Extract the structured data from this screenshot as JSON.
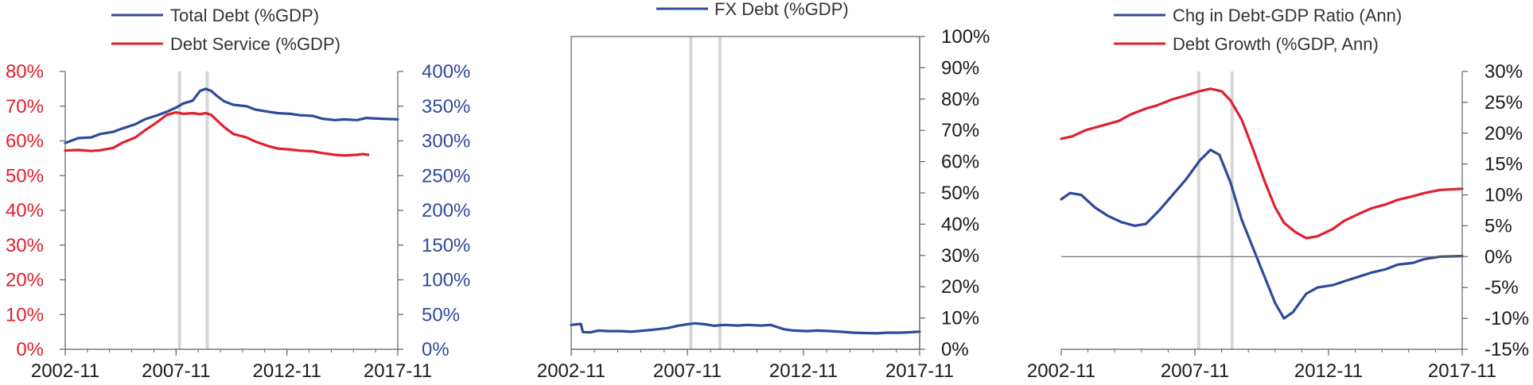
{
  "colors": {
    "blue": "#2E4A9A",
    "red": "#E0202E",
    "axis": "#606060",
    "recession_band": "#D6D6D6"
  },
  "recession_bands": [
    [
      "2007-12",
      "2008-01"
    ],
    [
      "2009-03",
      "2009-04"
    ]
  ],
  "chart_data": [
    {
      "type": "line",
      "legend": [
        "Total Debt (%GDP)",
        "Debt Service (%GDP)"
      ],
      "legend_placement": "top",
      "x_ticks": [
        "2002-11",
        "2007-11",
        "2012-11",
        "2017-11"
      ],
      "xlim": [
        "2002-11",
        "2017-11"
      ],
      "left_axis": {
        "ticks": [
          "0%",
          "10%",
          "20%",
          "30%",
          "40%",
          "50%",
          "60%",
          "70%",
          "80%"
        ],
        "ylim": [
          0,
          80
        ],
        "color": "#E0202E"
      },
      "right_axis": {
        "ticks": [
          "0%",
          "50%",
          "100%",
          "150%",
          "200%",
          "250%",
          "300%",
          "350%",
          "400%"
        ],
        "ylim": [
          0,
          400
        ],
        "color": "#2E4A9A"
      },
      "grid": false,
      "series": [
        {
          "name": "Total Debt (%GDP)",
          "axis": "right",
          "color": "#2E4A9A",
          "points": [
            [
              "2002-11",
              297
            ],
            [
              "2003-06",
              304
            ],
            [
              "2004-01",
              305
            ],
            [
              "2004-06",
              310
            ],
            [
              "2005-01",
              313
            ],
            [
              "2005-06",
              318
            ],
            [
              "2006-01",
              324
            ],
            [
              "2006-06",
              331
            ],
            [
              "2007-01",
              337
            ],
            [
              "2007-06",
              342
            ],
            [
              "2007-11",
              348
            ],
            [
              "2008-03",
              354
            ],
            [
              "2008-08",
              358
            ],
            [
              "2008-12",
              372
            ],
            [
              "2009-03",
              375
            ],
            [
              "2009-06",
              372
            ],
            [
              "2009-09",
              365
            ],
            [
              "2010-01",
              357
            ],
            [
              "2010-06",
              352
            ],
            [
              "2011-01",
              350
            ],
            [
              "2011-06",
              345
            ],
            [
              "2012-01",
              342
            ],
            [
              "2012-06",
              340
            ],
            [
              "2013-01",
              339
            ],
            [
              "2013-06",
              337
            ],
            [
              "2014-01",
              336
            ],
            [
              "2014-06",
              332
            ],
            [
              "2015-01",
              330
            ],
            [
              "2015-06",
              331
            ],
            [
              "2016-01",
              330
            ],
            [
              "2016-06",
              333
            ],
            [
              "2017-01",
              332
            ],
            [
              "2017-11",
              331
            ]
          ]
        },
        {
          "name": "Debt Service (%GDP)",
          "axis": "left",
          "color": "#E0202E",
          "points": [
            [
              "2002-11",
              57.2
            ],
            [
              "2003-06",
              57.4
            ],
            [
              "2004-01",
              57.1
            ],
            [
              "2004-06",
              57.3
            ],
            [
              "2005-01",
              58
            ],
            [
              "2005-06",
              59.5
            ],
            [
              "2006-01",
              61
            ],
            [
              "2006-06",
              63
            ],
            [
              "2007-01",
              65.5
            ],
            [
              "2007-06",
              67.5
            ],
            [
              "2007-11",
              68.2
            ],
            [
              "2008-03",
              67.8
            ],
            [
              "2008-08",
              68
            ],
            [
              "2008-12",
              67.7
            ],
            [
              "2009-03",
              68
            ],
            [
              "2009-06",
              67.5
            ],
            [
              "2009-09",
              66
            ],
            [
              "2010-01",
              64
            ],
            [
              "2010-06",
              62
            ],
            [
              "2011-01",
              61
            ],
            [
              "2011-06",
              59.8
            ],
            [
              "2012-01",
              58.5
            ],
            [
              "2012-06",
              57.8
            ],
            [
              "2013-01",
              57.5
            ],
            [
              "2013-06",
              57.2
            ],
            [
              "2014-01",
              57
            ],
            [
              "2014-06",
              56.5
            ],
            [
              "2015-01",
              56
            ],
            [
              "2015-06",
              55.8
            ],
            [
              "2016-01",
              56
            ],
            [
              "2016-04",
              56.2
            ],
            [
              "2016-07",
              56
            ]
          ]
        }
      ]
    },
    {
      "type": "line",
      "legend": [
        "FX Debt (%GDP)"
      ],
      "legend_placement": "top",
      "x_ticks": [
        "2002-11",
        "2007-11",
        "2012-11",
        "2017-11"
      ],
      "xlim": [
        "2002-11",
        "2017-11"
      ],
      "right_axis": {
        "ticks": [
          "0%",
          "10%",
          "20%",
          "30%",
          "40%",
          "50%",
          "60%",
          "70%",
          "80%",
          "90%",
          "100%"
        ],
        "ylim": [
          0,
          100
        ]
      },
      "grid": false,
      "series": [
        {
          "name": "FX Debt (%GDP)",
          "axis": "right",
          "color": "#2E4A9A",
          "points": [
            [
              "2002-11",
              7.8
            ],
            [
              "2003-02",
              8
            ],
            [
              "2003-04",
              8.1
            ],
            [
              "2003-05",
              5.5
            ],
            [
              "2003-09",
              5.4
            ],
            [
              "2004-01",
              6
            ],
            [
              "2004-06",
              5.8
            ],
            [
              "2005-01",
              5.8
            ],
            [
              "2005-06",
              5.6
            ],
            [
              "2006-01",
              6
            ],
            [
              "2006-06",
              6.3
            ],
            [
              "2007-01",
              6.8
            ],
            [
              "2007-06",
              7.5
            ],
            [
              "2007-11",
              8
            ],
            [
              "2008-03",
              8.3
            ],
            [
              "2008-08",
              8
            ],
            [
              "2009-01",
              7.5
            ],
            [
              "2009-06",
              7.8
            ],
            [
              "2010-01",
              7.6
            ],
            [
              "2010-06",
              7.8
            ],
            [
              "2011-01",
              7.6
            ],
            [
              "2011-06",
              7.8
            ],
            [
              "2011-09",
              7.2
            ],
            [
              "2012-01",
              6.4
            ],
            [
              "2012-06",
              6
            ],
            [
              "2013-01",
              5.8
            ],
            [
              "2013-06",
              6
            ],
            [
              "2014-01",
              5.8
            ],
            [
              "2014-06",
              5.6
            ],
            [
              "2015-01",
              5.3
            ],
            [
              "2015-06",
              5.2
            ],
            [
              "2016-01",
              5.1
            ],
            [
              "2016-06",
              5.3
            ],
            [
              "2017-01",
              5.3
            ],
            [
              "2017-11",
              5.6
            ]
          ]
        }
      ]
    },
    {
      "type": "line",
      "legend": [
        "Chg in Debt-GDP Ratio (Ann)",
        "Debt Growth (%GDP, Ann)"
      ],
      "legend_placement": "top",
      "x_ticks": [
        "2002-11",
        "2007-11",
        "2012-11",
        "2017-11"
      ],
      "xlim": [
        "2002-11",
        "2017-11"
      ],
      "right_axis": {
        "ticks": [
          "-15%",
          "-10%",
          "-5%",
          "0%",
          "5%",
          "10%",
          "15%",
          "20%",
          "25%",
          "30%"
        ],
        "ylim": [
          -15,
          30
        ]
      },
      "zero_line": true,
      "grid": false,
      "series": [
        {
          "name": "Chg in Debt-GDP Ratio (Ann)",
          "axis": "right",
          "color": "#2E4A9A",
          "points": [
            [
              "2002-11",
              9.3
            ],
            [
              "2003-03",
              10.3
            ],
            [
              "2003-08",
              10
            ],
            [
              "2004-02",
              8
            ],
            [
              "2004-08",
              6.6
            ],
            [
              "2005-02",
              5.6
            ],
            [
              "2005-08",
              5
            ],
            [
              "2006-01",
              5.3
            ],
            [
              "2006-07",
              7.5
            ],
            [
              "2007-01",
              10
            ],
            [
              "2007-07",
              12.5
            ],
            [
              "2008-01",
              15.5
            ],
            [
              "2008-06",
              17.3
            ],
            [
              "2008-10",
              16.5
            ],
            [
              "2009-03",
              12
            ],
            [
              "2009-08",
              6
            ],
            [
              "2010-01",
              1.5
            ],
            [
              "2010-06",
              -3
            ],
            [
              "2010-11",
              -7.5
            ],
            [
              "2011-03",
              -10
            ],
            [
              "2011-07",
              -9
            ],
            [
              "2012-01",
              -6
            ],
            [
              "2012-06",
              -5
            ],
            [
              "2013-01",
              -4.6
            ],
            [
              "2013-06",
              -4
            ],
            [
              "2014-01",
              -3.2
            ],
            [
              "2014-06",
              -2.6
            ],
            [
              "2015-01",
              -2
            ],
            [
              "2015-06",
              -1.3
            ],
            [
              "2016-01",
              -1
            ],
            [
              "2016-06",
              -0.4
            ],
            [
              "2017-01",
              0
            ],
            [
              "2017-11",
              0.1
            ]
          ]
        },
        {
          "name": "Debt Growth (%GDP, Ann)",
          "axis": "right",
          "color": "#E0202E",
          "points": [
            [
              "2002-11",
              19.1
            ],
            [
              "2003-04",
              19.5
            ],
            [
              "2003-10",
              20.5
            ],
            [
              "2004-06",
              21.3
            ],
            [
              "2005-01",
              22
            ],
            [
              "2005-06",
              23
            ],
            [
              "2006-01",
              24
            ],
            [
              "2006-06",
              24.5
            ],
            [
              "2007-01",
              25.5
            ],
            [
              "2007-06",
              26
            ],
            [
              "2008-01",
              26.8
            ],
            [
              "2008-06",
              27.2
            ],
            [
              "2008-11",
              26.8
            ],
            [
              "2009-03",
              25.3
            ],
            [
              "2009-08",
              22.2
            ],
            [
              "2010-01",
              17.5
            ],
            [
              "2010-06",
              12.5
            ],
            [
              "2010-11",
              8
            ],
            [
              "2011-03",
              5.5
            ],
            [
              "2011-08",
              4
            ],
            [
              "2012-01",
              3
            ],
            [
              "2012-06",
              3.3
            ],
            [
              "2013-01",
              4.5
            ],
            [
              "2013-06",
              5.8
            ],
            [
              "2014-01",
              7
            ],
            [
              "2014-06",
              7.8
            ],
            [
              "2015-01",
              8.5
            ],
            [
              "2015-06",
              9.2
            ],
            [
              "2016-01",
              9.8
            ],
            [
              "2016-06",
              10.3
            ],
            [
              "2017-01",
              10.8
            ],
            [
              "2017-11",
              11
            ]
          ]
        }
      ]
    }
  ]
}
